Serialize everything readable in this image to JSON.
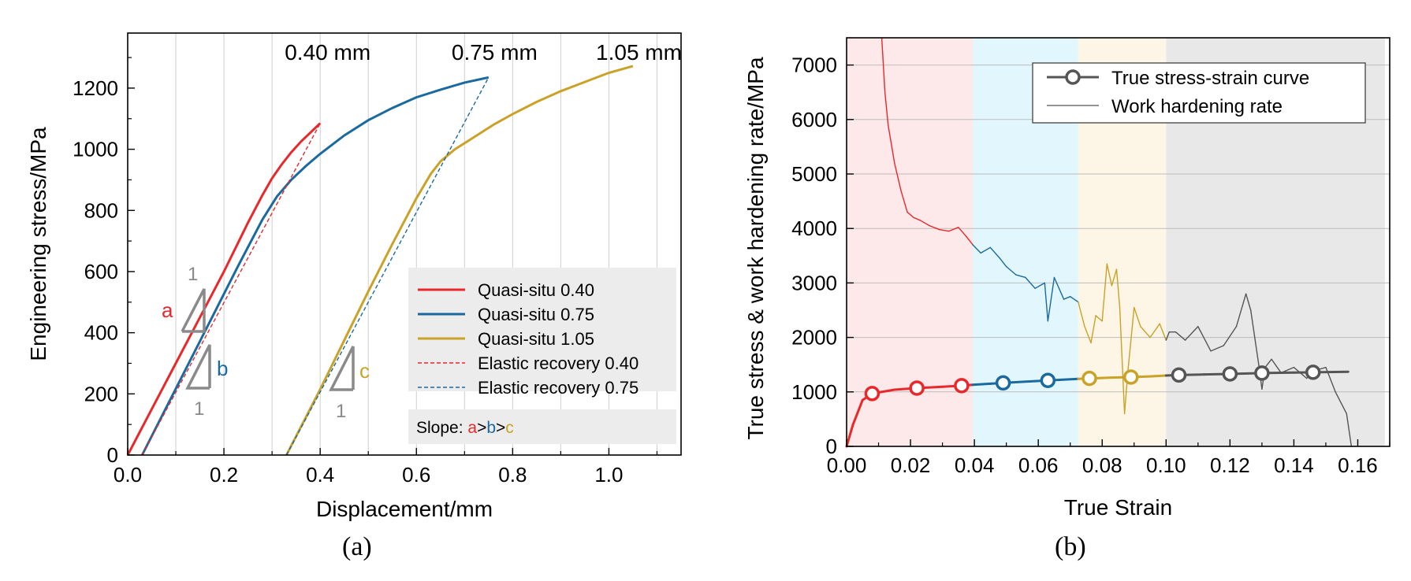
{
  "chart_data": [
    {
      "type": "line",
      "panel": "(a)",
      "xlabel": "Displacement/mm",
      "ylabel": "Engineering stress/MPa",
      "xlim": [
        0,
        1.15
      ],
      "ylim": [
        0,
        1380
      ],
      "xticks": [
        "0.0",
        "0.2",
        "0.4",
        "0.6",
        "0.8",
        "1.0"
      ],
      "xtick_values": [
        0,
        0.2,
        0.4,
        0.6,
        0.8,
        1.0
      ],
      "yticks": [
        "0",
        "200",
        "400",
        "600",
        "800",
        "1000",
        "1200"
      ],
      "ytick_values": [
        0,
        200,
        400,
        600,
        800,
        1000,
        1200
      ],
      "annotations": [
        "0.40 mm",
        "0.75 mm",
        "1.05 mm"
      ],
      "annotation_x": [
        0.4,
        0.75,
        1.05
      ],
      "slope_labels": [
        "a",
        "b",
        "c"
      ],
      "slope_unit": "1",
      "slope_note": {
        "prefix": "Slope: ",
        "a": "a",
        "gt1": ">",
        "b": "b",
        "gt2": ">",
        "c": "c"
      },
      "series": [
        {
          "name": "Quasi-situ 0.40",
          "color": "#e8282b",
          "style": "solid",
          "x": [
            0,
            0.05,
            0.1,
            0.15,
            0.2,
            0.25,
            0.28,
            0.3,
            0.32,
            0.34,
            0.36,
            0.38,
            0.4
          ],
          "y": [
            0,
            150,
            300,
            450,
            600,
            760,
            850,
            905,
            950,
            990,
            1025,
            1055,
            1085
          ]
        },
        {
          "name": "Quasi-situ 0.75",
          "color": "#1a6aa0",
          "style": "solid",
          "x": [
            0.03,
            0.08,
            0.13,
            0.18,
            0.23,
            0.28,
            0.31,
            0.34,
            0.37,
            0.4,
            0.45,
            0.5,
            0.55,
            0.6,
            0.65,
            0.7,
            0.73,
            0.75
          ],
          "y": [
            0,
            155,
            310,
            465,
            620,
            770,
            845,
            900,
            945,
            985,
            1045,
            1095,
            1135,
            1170,
            1195,
            1218,
            1228,
            1235
          ]
        },
        {
          "name": "Quasi-situ 1.05",
          "color": "#c9a227",
          "style": "solid",
          "x": [
            0.33,
            0.4,
            0.45,
            0.5,
            0.55,
            0.6,
            0.63,
            0.65,
            0.68,
            0.72,
            0.76,
            0.8,
            0.85,
            0.9,
            0.95,
            1.0,
            1.05
          ],
          "y": [
            0,
            215,
            375,
            535,
            690,
            840,
            920,
            960,
            1000,
            1040,
            1080,
            1115,
            1155,
            1190,
            1220,
            1250,
            1272
          ]
        },
        {
          "name": "Elastic recovery 0.40",
          "color": "#e8282b",
          "style": "dashed",
          "x": [
            0.03,
            0.4
          ],
          "y": [
            0,
            1085
          ]
        },
        {
          "name": "Elastic recovery 0.75",
          "color": "#1a6aa0",
          "style": "dashed",
          "x": [
            0.33,
            0.75
          ],
          "y": [
            0,
            1235
          ]
        }
      ]
    },
    {
      "type": "line",
      "panel": "(b)",
      "xlabel": "True Strain",
      "ylabel": "True stress & work hardening rate/MPa",
      "xlim": [
        0,
        0.17
      ],
      "ylim": [
        0,
        7500
      ],
      "xticks": [
        "0.00",
        "0.02",
        "0.04",
        "0.06",
        "0.08",
        "0.10",
        "0.12",
        "0.14",
        "0.16"
      ],
      "xtick_values": [
        0,
        0.02,
        0.04,
        0.06,
        0.08,
        0.1,
        0.12,
        0.14,
        0.16
      ],
      "yticks": [
        "0",
        "1000",
        "2000",
        "3000",
        "4000",
        "5000",
        "6000",
        "7000"
      ],
      "ytick_values": [
        0,
        1000,
        2000,
        3000,
        4000,
        5000,
        6000,
        7000
      ],
      "stage_boundaries": [
        0,
        0.0395,
        0.0725,
        0.1,
        0.1685
      ],
      "stage_colors": [
        "#fde9e9",
        "#e2f6fd",
        "#fdf6e6",
        "#e8e8e8"
      ],
      "legend": [
        "True stress-strain curve",
        "Work hardening rate"
      ],
      "series": [
        {
          "name": "True stress-strain curve",
          "color": "#555555",
          "x": [
            0,
            0.002,
            0.005,
            0.008,
            0.015,
            0.022,
            0.03,
            0.036,
            0.0395,
            0.045,
            0.049,
            0.055,
            0.063,
            0.0725,
            0.076,
            0.083,
            0.089,
            0.095,
            0.1,
            0.104,
            0.112,
            0.12,
            0.13,
            0.14,
            0.146,
            0.157
          ],
          "y": [
            0,
            400,
            850,
            970,
            1040,
            1070,
            1095,
            1115,
            1130,
            1150,
            1165,
            1185,
            1210,
            1240,
            1248,
            1262,
            1272,
            1285,
            1300,
            1310,
            1320,
            1330,
            1345,
            1355,
            1360,
            1370
          ],
          "segment_colors": [
            "#e8282b",
            "#1a6aa0",
            "#c9a227",
            "#555555"
          ],
          "markers_x": [
            0.008,
            0.022,
            0.036,
            0.049,
            0.063,
            0.076,
            0.089,
            0.104,
            0.12,
            0.13,
            0.146
          ],
          "markers_y": [
            970,
            1070,
            1115,
            1165,
            1210,
            1248,
            1272,
            1310,
            1330,
            1345,
            1360
          ]
        },
        {
          "name": "Work hardening rate",
          "color": "#555555",
          "x": [
            0.011,
            0.012,
            0.013,
            0.015,
            0.017,
            0.019,
            0.021,
            0.023,
            0.026,
            0.029,
            0.032,
            0.035,
            0.0375,
            0.0395,
            0.042,
            0.045,
            0.048,
            0.05,
            0.053,
            0.056,
            0.059,
            0.062,
            0.063,
            0.065,
            0.068,
            0.07,
            0.0725,
            0.0745,
            0.0765,
            0.078,
            0.08,
            0.0815,
            0.083,
            0.0845,
            0.0855,
            0.087,
            0.088,
            0.09,
            0.092,
            0.095,
            0.098,
            0.1,
            0.101,
            0.103,
            0.106,
            0.11,
            0.114,
            0.118,
            0.122,
            0.125,
            0.1265,
            0.128,
            0.129,
            0.13,
            0.131,
            0.133,
            0.136,
            0.14,
            0.144,
            0.147,
            0.15,
            0.153,
            0.1565,
            0.158
          ],
          "y": [
            7500,
            6500,
            5900,
            5200,
            4700,
            4300,
            4200,
            4150,
            4050,
            3980,
            3950,
            4020,
            3850,
            3700,
            3550,
            3650,
            3450,
            3300,
            3150,
            3100,
            2900,
            3000,
            2300,
            3100,
            2700,
            2750,
            2650,
            2200,
            1900,
            2400,
            2300,
            3350,
            2950,
            3250,
            2550,
            600,
            1350,
            2550,
            2200,
            2000,
            2250,
            1950,
            2100,
            2100,
            1950,
            2200,
            1750,
            1850,
            2200,
            2800,
            2500,
            1900,
            1500,
            1050,
            1450,
            1600,
            1350,
            1450,
            1250,
            1400,
            1450,
            1000,
            600,
            0
          ],
          "segment_colors": [
            "#e8282b",
            "#1a6aa0",
            "#c9a227",
            "#555555"
          ]
        }
      ]
    }
  ],
  "captions": {
    "a": "(a)",
    "b": "(b)"
  }
}
